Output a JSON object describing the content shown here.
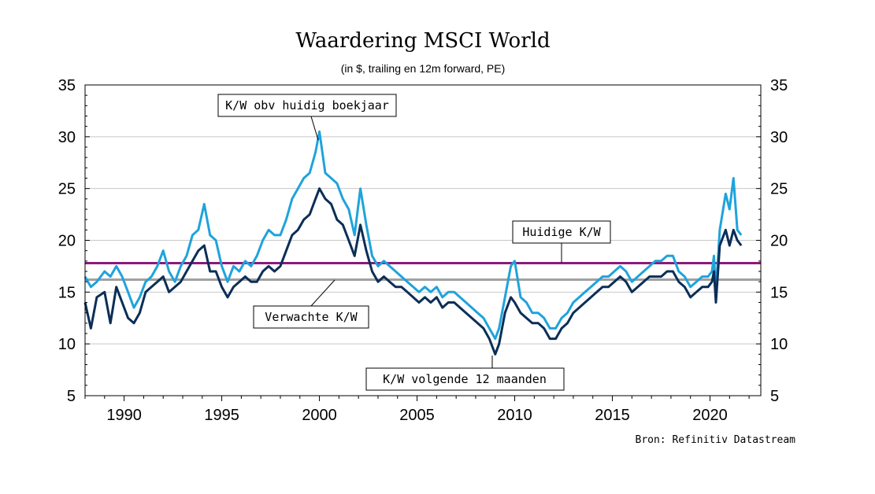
{
  "chart_data": {
    "type": "line",
    "title": "Waardering MSCI World",
    "subtitle": "(in $, trailing en 12m forward, PE)",
    "source": "Bron: Refinitiv Datastream",
    "xlim": [
      1988,
      2022.6
    ],
    "ylim": [
      5,
      35
    ],
    "x_ticks": [
      1990,
      1995,
      2000,
      2005,
      2010,
      2015,
      2020
    ],
    "y_ticks": [
      5,
      10,
      15,
      20,
      25,
      30,
      35
    ],
    "grid": "horizontal",
    "colors": {
      "trailing": "#1fa3dc",
      "forward": "#0b2e57",
      "current_pe": "#8b1a7a",
      "expected_pe": "#a0a0a0"
    },
    "series": [
      {
        "key": "trailing",
        "x": [
          1988.0,
          1988.3,
          1988.6,
          1989.0,
          1989.3,
          1989.6,
          1989.9,
          1990.2,
          1990.5,
          1990.8,
          1991.1,
          1991.4,
          1991.7,
          1992.0,
          1992.3,
          1992.6,
          1992.9,
          1993.2,
          1993.5,
          1993.8,
          1994.1,
          1994.4,
          1994.7,
          1995.0,
          1995.3,
          1995.6,
          1995.9,
          1996.2,
          1996.5,
          1996.8,
          1997.1,
          1997.4,
          1997.7,
          1998.0,
          1998.3,
          1998.6,
          1998.9,
          1999.2,
          1999.5,
          1999.8,
          2000.0,
          2000.3,
          2000.6,
          2000.9,
          2001.2,
          2001.5,
          2001.8,
          2002.1,
          2002.4,
          2002.7,
          2003.0,
          2003.3,
          2003.6,
          2003.9,
          2004.2,
          2004.5,
          2004.8,
          2005.1,
          2005.4,
          2005.7,
          2006.0,
          2006.3,
          2006.6,
          2006.9,
          2007.2,
          2007.5,
          2007.8,
          2008.1,
          2008.4,
          2008.7,
          2009.0,
          2009.2,
          2009.5,
          2009.8,
          2010.0,
          2010.3,
          2010.6,
          2010.9,
          2011.2,
          2011.5,
          2011.8,
          2012.1,
          2012.4,
          2012.7,
          2013.0,
          2013.3,
          2013.6,
          2013.9,
          2014.2,
          2014.5,
          2014.8,
          2015.1,
          2015.4,
          2015.7,
          2016.0,
          2016.3,
          2016.6,
          2016.9,
          2017.2,
          2017.5,
          2017.8,
          2018.1,
          2018.4,
          2018.7,
          2019.0,
          2019.3,
          2019.6,
          2019.9,
          2020.1,
          2020.2,
          2020.3,
          2020.5,
          2020.8,
          2021.0,
          2021.2,
          2021.4,
          2021.6
        ],
        "values": [
          16.5,
          15.5,
          16.0,
          17.0,
          16.5,
          17.5,
          16.5,
          15.0,
          13.5,
          14.5,
          16.0,
          16.5,
          17.5,
          19.0,
          17.0,
          16.0,
          17.5,
          18.5,
          20.5,
          21.0,
          23.5,
          20.5,
          20.0,
          17.5,
          16.0,
          17.5,
          17.0,
          18.0,
          17.5,
          18.5,
          20.0,
          21.0,
          20.5,
          20.5,
          22.0,
          24.0,
          25.0,
          26.0,
          26.5,
          28.5,
          30.5,
          26.5,
          26.0,
          25.5,
          24.0,
          23.0,
          20.5,
          25.0,
          21.5,
          18.5,
          17.5,
          18.0,
          17.5,
          17.0,
          16.5,
          16.0,
          15.5,
          15.0,
          15.5,
          15.0,
          15.5,
          14.5,
          15.0,
          15.0,
          14.5,
          14.0,
          13.5,
          13.0,
          12.5,
          11.5,
          10.5,
          11.5,
          14.5,
          17.5,
          18.0,
          14.5,
          14.0,
          13.0,
          13.0,
          12.5,
          11.5,
          11.5,
          12.5,
          13.0,
          14.0,
          14.5,
          15.0,
          15.5,
          16.0,
          16.5,
          16.5,
          17.0,
          17.5,
          17.0,
          16.0,
          16.5,
          17.0,
          17.5,
          18.0,
          18.0,
          18.5,
          18.5,
          17.0,
          16.5,
          15.5,
          16.0,
          16.5,
          16.5,
          17.0,
          18.5,
          15.0,
          21.0,
          24.5,
          23.0,
          26.0,
          21.0,
          20.5
        ]
      },
      {
        "key": "forward",
        "x": [
          1988.0,
          1988.3,
          1988.6,
          1989.0,
          1989.3,
          1989.6,
          1989.9,
          1990.2,
          1990.5,
          1990.8,
          1991.1,
          1991.4,
          1991.7,
          1992.0,
          1992.3,
          1992.6,
          1992.9,
          1993.2,
          1993.5,
          1993.8,
          1994.1,
          1994.4,
          1994.7,
          1995.0,
          1995.3,
          1995.6,
          1995.9,
          1996.2,
          1996.5,
          1996.8,
          1997.1,
          1997.4,
          1997.7,
          1998.0,
          1998.3,
          1998.6,
          1998.9,
          1999.2,
          1999.5,
          1999.8,
          2000.0,
          2000.3,
          2000.6,
          2000.9,
          2001.2,
          2001.5,
          2001.8,
          2002.1,
          2002.4,
          2002.7,
          2003.0,
          2003.3,
          2003.6,
          2003.9,
          2004.2,
          2004.5,
          2004.8,
          2005.1,
          2005.4,
          2005.7,
          2006.0,
          2006.3,
          2006.6,
          2006.9,
          2007.2,
          2007.5,
          2007.8,
          2008.1,
          2008.4,
          2008.7,
          2009.0,
          2009.2,
          2009.5,
          2009.8,
          2010.0,
          2010.3,
          2010.6,
          2010.9,
          2011.2,
          2011.5,
          2011.8,
          2012.1,
          2012.4,
          2012.7,
          2013.0,
          2013.3,
          2013.6,
          2013.9,
          2014.2,
          2014.5,
          2014.8,
          2015.1,
          2015.4,
          2015.7,
          2016.0,
          2016.3,
          2016.6,
          2016.9,
          2017.2,
          2017.5,
          2017.8,
          2018.1,
          2018.4,
          2018.7,
          2019.0,
          2019.3,
          2019.6,
          2019.9,
          2020.1,
          2020.2,
          2020.3,
          2020.5,
          2020.8,
          2021.0,
          2021.2,
          2021.4,
          2021.6
        ],
        "values": [
          14.0,
          11.5,
          14.5,
          15.0,
          12.0,
          15.5,
          14.0,
          12.5,
          12.0,
          13.0,
          15.0,
          15.5,
          16.0,
          16.5,
          15.0,
          15.5,
          16.0,
          17.0,
          18.0,
          19.0,
          19.5,
          17.0,
          17.0,
          15.5,
          14.5,
          15.5,
          16.0,
          16.5,
          16.0,
          16.0,
          17.0,
          17.5,
          17.0,
          17.5,
          19.0,
          20.5,
          21.0,
          22.0,
          22.5,
          24.0,
          25.0,
          24.0,
          23.5,
          22.0,
          21.5,
          20.0,
          18.5,
          21.5,
          19.0,
          17.0,
          16.0,
          16.5,
          16.0,
          15.5,
          15.5,
          15.0,
          14.5,
          14.0,
          14.5,
          14.0,
          14.5,
          13.5,
          14.0,
          14.0,
          13.5,
          13.0,
          12.5,
          12.0,
          11.5,
          10.5,
          9.0,
          10.0,
          13.0,
          14.5,
          14.0,
          13.0,
          12.5,
          12.0,
          12.0,
          11.5,
          10.5,
          10.5,
          11.5,
          12.0,
          13.0,
          13.5,
          14.0,
          14.5,
          15.0,
          15.5,
          15.5,
          16.0,
          16.5,
          16.0,
          15.0,
          15.5,
          16.0,
          16.5,
          16.5,
          16.5,
          17.0,
          17.0,
          16.0,
          15.5,
          14.5,
          15.0,
          15.5,
          15.5,
          16.0,
          17.0,
          14.0,
          19.5,
          21.0,
          19.5,
          21.0,
          20.0,
          19.5
        ]
      }
    ],
    "reference_lines": [
      {
        "key": "current_pe",
        "label": "Huidige K/W",
        "value": 17.8
      },
      {
        "key": "expected_pe",
        "label": "Verwachte K/W",
        "value": 16.2
      }
    ],
    "annotations": [
      {
        "key": "boekjaar",
        "label": "K/W obv huidig boekjaar"
      },
      {
        "key": "huidige",
        "label": "Huidige K/W"
      },
      {
        "key": "verwachte",
        "label": "Verwachte K/W"
      },
      {
        "key": "volgende",
        "label": "K/W volgende 12 maanden"
      }
    ]
  }
}
